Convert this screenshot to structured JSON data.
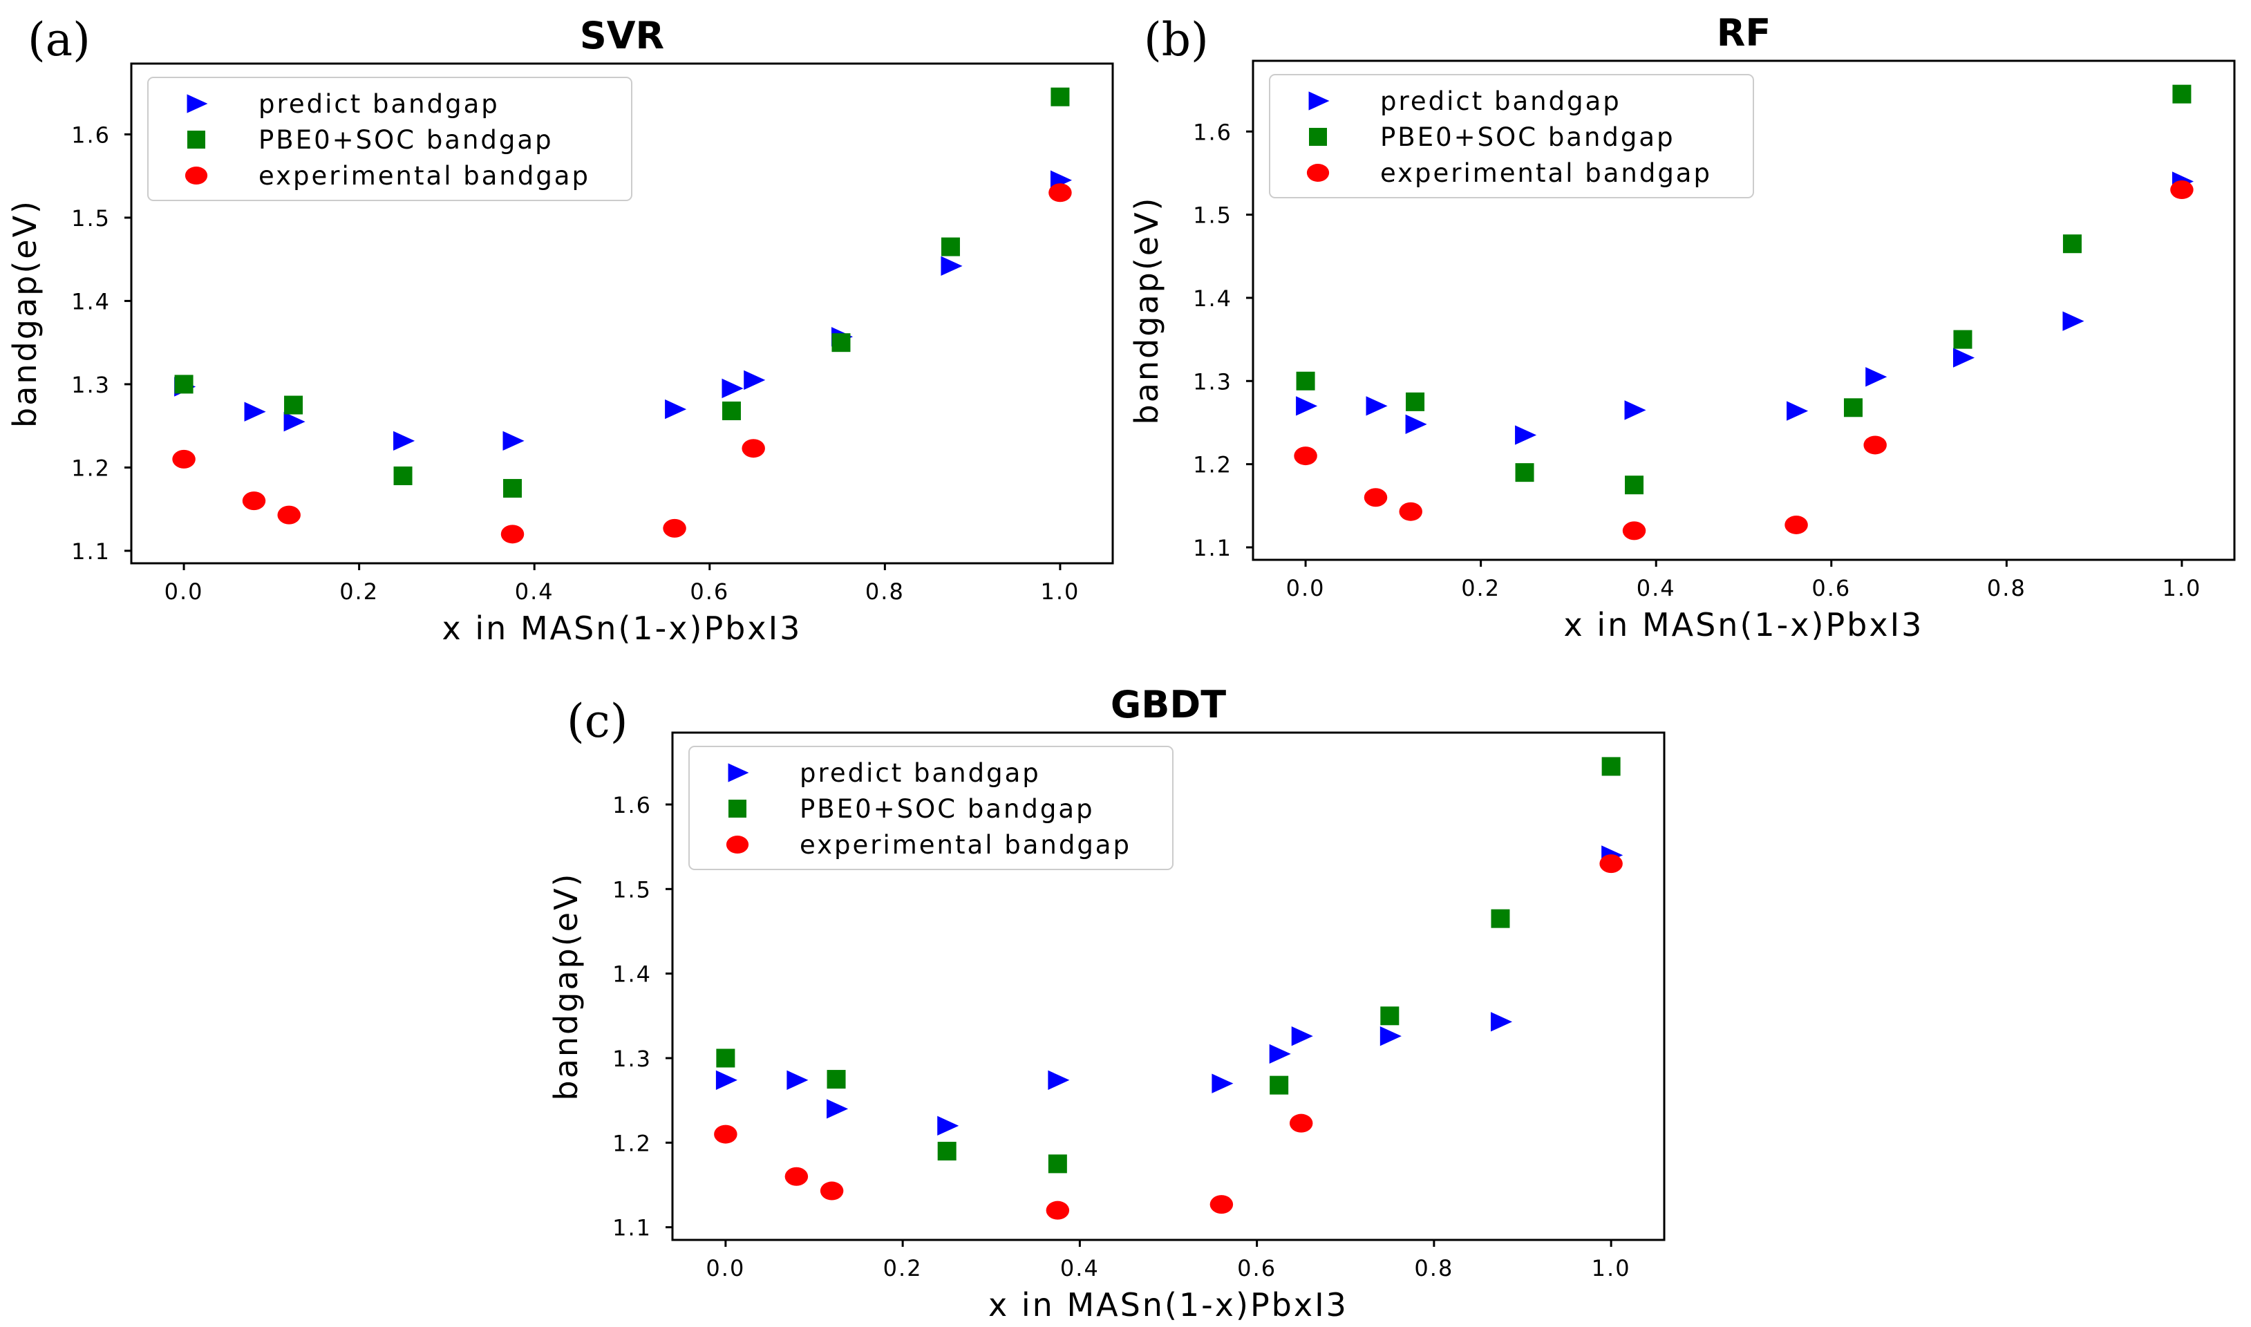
{
  "chart_data": [
    {
      "type": "scatter",
      "panel_label": "(a)",
      "title": "SVR",
      "xlabel": "x in MASn(1-x)PbxI3",
      "ylabel": "bandgap(eV)",
      "xlim": [
        -0.06,
        1.06
      ],
      "ylim": [
        1.085,
        1.685
      ],
      "xticks": [
        "0.0",
        "0.2",
        "0.4",
        "0.6",
        "0.8",
        "1.0"
      ],
      "yticks": [
        "1.1",
        "1.2",
        "1.3",
        "1.4",
        "1.5",
        "1.6"
      ],
      "legend_position": "top-left",
      "series": [
        {
          "name": "predict bandgap",
          "marker": "triangle-right",
          "color": "#0000ff",
          "x": [
            0.0,
            0.08,
            0.125,
            0.25,
            0.375,
            0.56,
            0.625,
            0.65,
            0.75,
            0.875,
            1.0
          ],
          "y": [
            1.297,
            1.267,
            1.255,
            1.232,
            1.232,
            1.27,
            1.295,
            1.305,
            1.357,
            1.442,
            1.545
          ]
        },
        {
          "name": "PBE0+SOC bandgap",
          "marker": "square",
          "color": "#008000",
          "x": [
            0.0,
            0.125,
            0.25,
            0.375,
            0.625,
            0.75,
            0.875,
            1.0
          ],
          "y": [
            1.3,
            1.275,
            1.19,
            1.175,
            1.268,
            1.35,
            1.465,
            1.645
          ]
        },
        {
          "name": "experimental bandgap",
          "marker": "circle",
          "color": "#ff0000",
          "x": [
            0.0,
            0.08,
            0.12,
            0.375,
            0.56,
            0.65,
            1.0
          ],
          "y": [
            1.21,
            1.16,
            1.143,
            1.12,
            1.127,
            1.223,
            1.53
          ]
        }
      ]
    },
    {
      "type": "scatter",
      "panel_label": "(b)",
      "title": "RF",
      "xlabel": "x in MASn(1-x)PbxI3",
      "ylabel": "bandgap(eV)",
      "xlim": [
        -0.06,
        1.06
      ],
      "ylim": [
        1.085,
        1.685
      ],
      "xticks": [
        "0.0",
        "0.2",
        "0.4",
        "0.6",
        "0.8",
        "1.0"
      ],
      "yticks": [
        "1.1",
        "1.2",
        "1.3",
        "1.4",
        "1.5",
        "1.6"
      ],
      "legend_position": "top-left",
      "series": [
        {
          "name": "predict bandgap",
          "marker": "triangle-right",
          "color": "#0000ff",
          "x": [
            0.0,
            0.08,
            0.125,
            0.25,
            0.375,
            0.56,
            0.65,
            0.75,
            0.875,
            1.0
          ],
          "y": [
            1.27,
            1.27,
            1.248,
            1.235,
            1.265,
            1.264,
            1.305,
            1.328,
            1.372,
            1.54
          ]
        },
        {
          "name": "PBE0+SOC bandgap",
          "marker": "square",
          "color": "#008000",
          "x": [
            0.0,
            0.125,
            0.25,
            0.375,
            0.625,
            0.75,
            0.875,
            1.0
          ],
          "y": [
            1.3,
            1.275,
            1.19,
            1.175,
            1.268,
            1.35,
            1.465,
            1.645
          ]
        },
        {
          "name": "experimental bandgap",
          "marker": "circle",
          "color": "#ff0000",
          "x": [
            0.0,
            0.08,
            0.12,
            0.375,
            0.56,
            0.65,
            1.0
          ],
          "y": [
            1.21,
            1.16,
            1.143,
            1.12,
            1.127,
            1.223,
            1.53
          ]
        }
      ]
    },
    {
      "type": "scatter",
      "panel_label": "(c)",
      "title": "GBDT",
      "xlabel": "x in MASn(1-x)PbxI3",
      "ylabel": "bandgap(eV)",
      "xlim": [
        -0.06,
        1.06
      ],
      "ylim": [
        1.085,
        1.685
      ],
      "xticks": [
        "0.0",
        "0.2",
        "0.4",
        "0.6",
        "0.8",
        "1.0"
      ],
      "yticks": [
        "1.1",
        "1.2",
        "1.3",
        "1.4",
        "1.5",
        "1.6"
      ],
      "legend_position": "top-left",
      "series": [
        {
          "name": "predict bandgap",
          "marker": "triangle-right",
          "color": "#0000ff",
          "x": [
            0.0,
            0.08,
            0.125,
            0.25,
            0.375,
            0.56,
            0.625,
            0.65,
            0.75,
            0.875,
            1.0
          ],
          "y": [
            1.274,
            1.274,
            1.24,
            1.22,
            1.274,
            1.27,
            1.305,
            1.326,
            1.326,
            1.343,
            1.54
          ]
        },
        {
          "name": "PBE0+SOC bandgap",
          "marker": "square",
          "color": "#008000",
          "x": [
            0.0,
            0.125,
            0.25,
            0.375,
            0.625,
            0.75,
            0.875,
            1.0
          ],
          "y": [
            1.3,
            1.275,
            1.19,
            1.175,
            1.268,
            1.35,
            1.465,
            1.645
          ]
        },
        {
          "name": "experimental bandgap",
          "marker": "circle",
          "color": "#ff0000",
          "x": [
            0.0,
            0.08,
            0.12,
            0.375,
            0.56,
            0.65,
            1.0
          ],
          "y": [
            1.21,
            1.16,
            1.143,
            1.12,
            1.127,
            1.223,
            1.53
          ]
        }
      ]
    }
  ]
}
